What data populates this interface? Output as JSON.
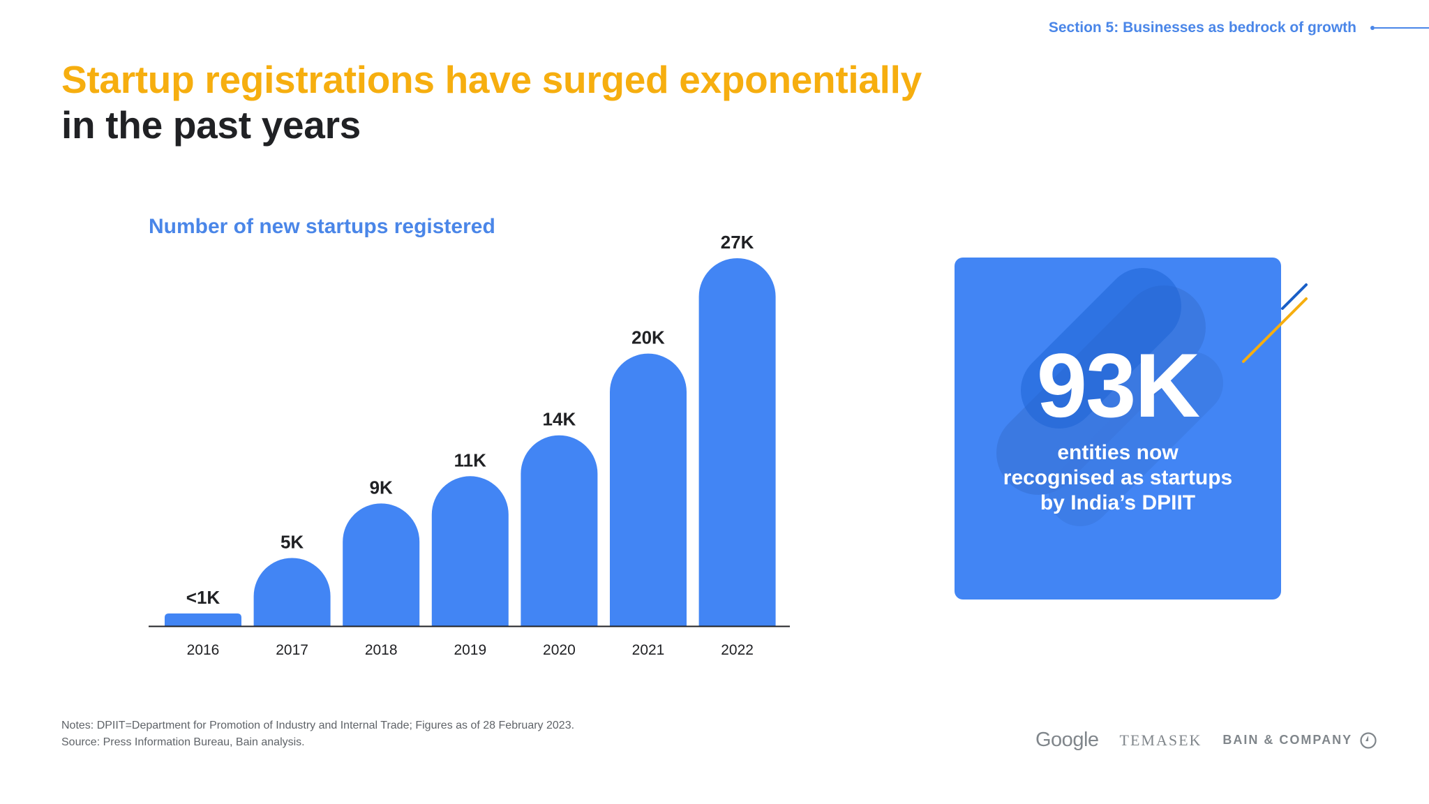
{
  "header": {
    "section_label": "Section 5: Businesses as bedrock of growth",
    "title_highlight": "Startup registrations have surged exponentially",
    "title_rest": "in the past years"
  },
  "chart_data": {
    "type": "bar",
    "title": "Number of new startups registered",
    "categories": [
      "2016",
      "2017",
      "2018",
      "2019",
      "2020",
      "2021",
      "2022"
    ],
    "values": [
      0.5,
      5,
      9,
      11,
      14,
      20,
      27
    ],
    "data_labels": [
      "<1K",
      "5K",
      "9K",
      "11K",
      "14K",
      "20K",
      "27K"
    ],
    "xlabel": "",
    "ylabel": "",
    "ylim": [
      0,
      27
    ],
    "grid": false,
    "bar_color": "#4285f4"
  },
  "stat_card": {
    "value": "93K",
    "caption": "entities now\nrecognised as startups\nby India’s DPIIT",
    "background": "#4285f4"
  },
  "notes": {
    "line1": "Notes: DPIIT=Department for Promotion of Industry and Internal Trade; Figures as of 28 February 2023.",
    "line2": "Source: Press Information Bureau, Bain analysis."
  },
  "logos": {
    "google": "Google",
    "temasek": "TEMASEK",
    "bain": "BAIN & COMPANY"
  },
  "colors": {
    "accent_yellow": "#f6ae0f",
    "accent_blue": "#4a86e8",
    "title_dark": "#202124"
  }
}
